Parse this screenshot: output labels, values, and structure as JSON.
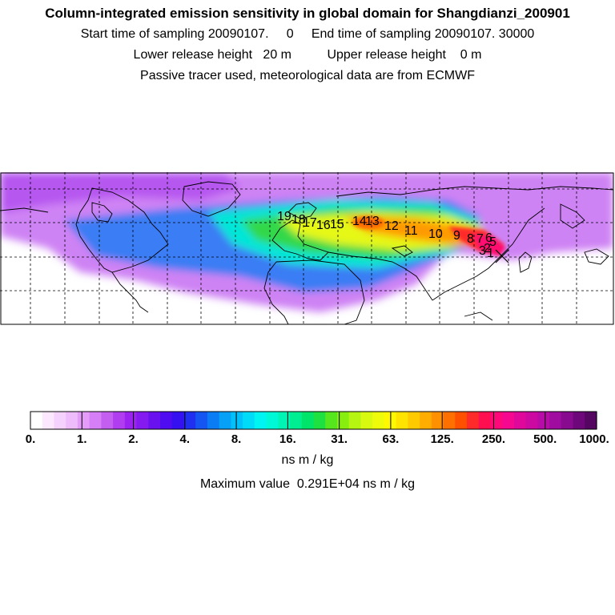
{
  "header": {
    "title": "Column-integrated emission sensitivity in global domain for Shangdianzi_200901",
    "sampling_line": "Start time of sampling 20090107.     0     End time of sampling 20090107. 30000",
    "release_line": "Lower release height   20 m          Upper release height    0 m",
    "info_line": "Passive tracer used, meteorological data are from ECMWF"
  },
  "map": {
    "station_marker": "x-marker-icon",
    "track_labels": [
      "19",
      "18",
      "17",
      "16",
      "15",
      "14",
      "13",
      "12",
      "11",
      "10",
      "9",
      "8",
      "7",
      "6",
      "5",
      "3",
      "2",
      "1"
    ]
  },
  "colorbar": {
    "ticks": [
      "0.",
      "1.",
      "2.",
      "4.",
      "8.",
      "16.",
      "31.",
      "63.",
      "125.",
      "250.",
      "500.",
      "1000."
    ],
    "colors": [
      "#ffffff",
      "#fbe8ff",
      "#f5d2fd",
      "#eebbfb",
      "#e39cf8",
      "#d67ef5",
      "#c45ef1",
      "#b13df0",
      "#9c22f0",
      "#8419f0",
      "#6a11f0",
      "#4f0cf0",
      "#3510f0",
      "#2030f0",
      "#1556f2",
      "#0a7df5",
      "#06a0f7",
      "#02c0f9",
      "#00dcf8",
      "#00f4f2",
      "#00f8d6",
      "#00f5b5",
      "#00ee92",
      "#00e46a",
      "#1ee040",
      "#55e61e",
      "#88ee10",
      "#b6f512",
      "#d8fa10",
      "#eefc0c",
      "#fff800",
      "#ffe400",
      "#ffcb00",
      "#ffae00",
      "#ff9000",
      "#ff7000",
      "#ff5000",
      "#ff2a2a",
      "#ff0f50",
      "#ff087a",
      "#f5088f",
      "#e0089a",
      "#cc0aa2",
      "#b80ca6",
      "#a00ba0",
      "#880a8e",
      "#6e087a",
      "#540660"
    ],
    "units": "ns m / kg",
    "maximum": "Maximum value  0.291E+04 ns m / kg"
  }
}
